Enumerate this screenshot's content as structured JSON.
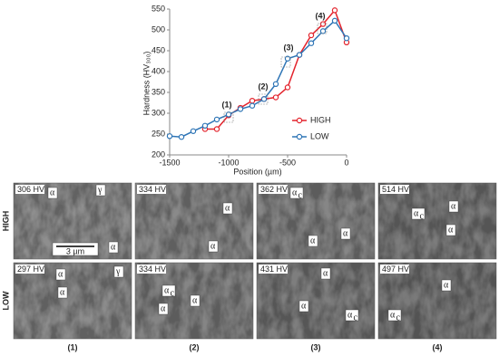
{
  "chart_data": {
    "type": "line",
    "x_label": "Position (µm)",
    "y_label": "Hardness (HV₃₀₀)",
    "xlim": [
      -1500,
      0
    ],
    "xticks": [
      -1500,
      -1000,
      -500,
      0
    ],
    "ylim": [
      200,
      550
    ],
    "yticks": [
      200,
      250,
      300,
      350,
      400,
      450,
      500,
      550
    ],
    "grid": false,
    "legend": "lower-right",
    "annotations": [
      "(1)",
      "(2)",
      "(3)",
      "(4)"
    ],
    "series": [
      {
        "name": "HIGH",
        "color": "#e3232c",
        "x": [
          -1200,
          -1100,
          -1000,
          -900,
          -800,
          -700,
          -600,
          -500,
          -400,
          -300,
          -200,
          -100,
          0
        ],
        "values": [
          262,
          262,
          295,
          313,
          330,
          334,
          338,
          362,
          440,
          487,
          514,
          547,
          470
        ]
      },
      {
        "name": "LOW",
        "color": "#2e75b6",
        "x": [
          -1500,
          -1400,
          -1300,
          -1200,
          -1100,
          -1000,
          -900,
          -800,
          -700,
          -600,
          -500,
          -400,
          -300,
          -200,
          -100,
          0
        ],
        "values": [
          245,
          243,
          257,
          270,
          285,
          297,
          310,
          318,
          334,
          370,
          431,
          440,
          468,
          497,
          522,
          480
        ]
      }
    ]
  },
  "micrographs": {
    "rows": [
      "HIGH",
      "LOW"
    ],
    "columns": [
      "(1)",
      "(2)",
      "(3)",
      "(4)"
    ],
    "scale_bar": "3 µm",
    "panels": [
      [
        {
          "hardness": "306 HV",
          "labels": [
            {
              "text": "α"
            },
            {
              "text": "γ"
            },
            {
              "text": "α"
            }
          ]
        },
        {
          "hardness": "334 HV",
          "labels": [
            {
              "text": "α"
            },
            {
              "text": "α"
            }
          ]
        },
        {
          "hardness": "362 HV",
          "labels": [
            {
              "text": "α",
              "sub": "c"
            },
            {
              "text": "α"
            },
            {
              "text": "α"
            }
          ]
        },
        {
          "hardness": "514 HV",
          "labels": [
            {
              "text": "α",
              "sub": "c"
            },
            {
              "text": "α"
            },
            {
              "text": "α"
            }
          ]
        }
      ],
      [
        {
          "hardness": "297 HV",
          "labels": [
            {
              "text": "α"
            },
            {
              "text": "γ"
            },
            {
              "text": "α"
            }
          ]
        },
        {
          "hardness": "334 HV",
          "labels": [
            {
              "text": "α",
              "sub": "c"
            },
            {
              "text": "α"
            },
            {
              "text": "α"
            }
          ]
        },
        {
          "hardness": "431 HV",
          "labels": [
            {
              "text": "α"
            },
            {
              "text": "α"
            },
            {
              "text": "α",
              "sub": "c"
            }
          ]
        },
        {
          "hardness": "497 HV",
          "labels": [
            {
              "text": "α"
            },
            {
              "text": "α",
              "sub": "c"
            }
          ]
        }
      ]
    ]
  }
}
